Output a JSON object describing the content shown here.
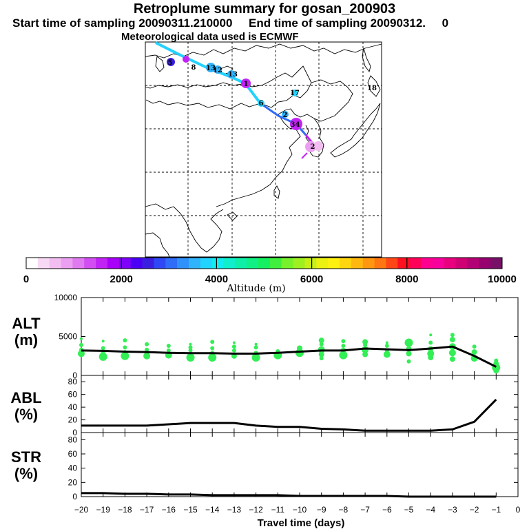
{
  "header": {
    "title": "Retroplume summary for gosan_200903",
    "line2": "Start time of sampling 20090311.210000     End time of sampling 20090312.     0",
    "line3": "Meteorological data used is ECMWF"
  },
  "colorbar": {
    "label": "Altitude (m)",
    "ticks": [
      "0",
      "2000",
      "4000",
      "6000",
      "8000",
      "10000"
    ],
    "colors": [
      "#ffffff",
      "#f7d9f5",
      "#f2bdf0",
      "#eb9ff0",
      "#e07af0",
      "#d24ef2",
      "#c223f5",
      "#a800f8",
      "#7f00fa",
      "#4b00f5",
      "#3a1fe0",
      "#2f47f5",
      "#2f6cf7",
      "#2f91fa",
      "#2fb4fc",
      "#22d3ff",
      "#10ecf0",
      "#10eecc",
      "#10efa8",
      "#10f085",
      "#15f060",
      "#40ef3e",
      "#77f12c",
      "#9ff021",
      "#c8ef18",
      "#ebf110",
      "#fff010",
      "#ffd510",
      "#ffb810",
      "#ff9810",
      "#ff7612",
      "#ff4616",
      "#ff1020",
      "#ff0058",
      "#ff0090",
      "#f8009c",
      "#e8007f",
      "#cf0073",
      "#b40075",
      "#96006f",
      "#781068"
    ]
  },
  "map": {
    "point_labels": [
      "5",
      "8",
      "13",
      "12",
      "13",
      "6",
      "17",
      "1",
      "2",
      "18",
      "3",
      "2",
      "4"
    ]
  },
  "axes": {
    "x_label": "Travel time (days)",
    "x_ticks": [
      "−20",
      "−19",
      "−18",
      "−17",
      "−16",
      "−15",
      "−14",
      "−13",
      "−12",
      "−11",
      "−10",
      "−9",
      "−8",
      "−7",
      "−6",
      "−5",
      "−4",
      "−3",
      "−2",
      "−1",
      "0"
    ]
  },
  "chart_data": [
    {
      "type": "line",
      "panel": "ALT",
      "ylabel": "ALT\n(m)",
      "ylim": [
        0,
        10000
      ],
      "yticks": [
        "10000",
        "5000",
        "0"
      ],
      "x": [
        -20,
        -19,
        -18,
        -17,
        -16,
        -15,
        -14,
        -13,
        -12,
        -11,
        -10,
        -9,
        -8,
        -7,
        -6,
        -5,
        -4,
        -3,
        -2,
        -1
      ],
      "y": [
        3200,
        3150,
        3050,
        3000,
        2900,
        2850,
        2850,
        2800,
        2800,
        2900,
        3050,
        3200,
        3200,
        3450,
        3350,
        3250,
        3450,
        3700,
        2500,
        1100
      ],
      "scatter_note": "green markers around the mean altitude curve at each day"
    },
    {
      "type": "line",
      "panel": "ABL",
      "ylabel": "ABL\n(%)",
      "ylim": [
        0,
        90
      ],
      "yticks": [
        "80",
        "60",
        "40",
        "20",
        "0"
      ],
      "x": [
        -20,
        -19,
        -18,
        -17,
        -16,
        -15,
        -14,
        -13,
        -12,
        -11,
        -10,
        -9,
        -8,
        -7,
        -6,
        -5,
        -4,
        -3,
        -2,
        -1
      ],
      "y": [
        11,
        11,
        11,
        11,
        13,
        15,
        15,
        15,
        11,
        9,
        9,
        6,
        5,
        3,
        3,
        3,
        3,
        5,
        17,
        52
      ]
    },
    {
      "type": "line",
      "panel": "STR",
      "ylabel": "STR\n(%)",
      "ylim": [
        0,
        90
      ],
      "yticks": [
        "80",
        "60",
        "40",
        "20",
        "0"
      ],
      "x": [
        -20,
        -19,
        -18,
        -17,
        -16,
        -15,
        -14,
        -13,
        -12,
        -11,
        -10,
        -9,
        -8,
        -7,
        -6,
        -5,
        -4,
        -3,
        -2,
        -1
      ],
      "y": [
        5,
        5,
        4,
        4,
        3,
        3,
        2,
        2,
        2,
        2,
        1,
        1,
        1,
        1,
        1,
        0,
        0,
        0,
        0,
        0
      ]
    }
  ],
  "scatter": [
    {
      "x": -20,
      "ys": [
        2800,
        3300,
        3900,
        4700
      ],
      "r": [
        5,
        3,
        3,
        2
      ]
    },
    {
      "x": -19,
      "ys": [
        2400,
        2900,
        3500,
        4400
      ],
      "r": [
        6,
        3,
        3,
        2
      ]
    },
    {
      "x": -18,
      "ys": [
        2500,
        3000,
        3600,
        4500
      ],
      "r": [
        6,
        3,
        3,
        3
      ]
    },
    {
      "x": -17,
      "ys": [
        2500,
        2900,
        3300,
        4000
      ],
      "r": [
        5,
        3,
        3,
        3
      ]
    },
    {
      "x": -16,
      "ys": [
        2600,
        3200,
        3800
      ],
      "r": [
        5,
        3,
        3
      ]
    },
    {
      "x": -15,
      "ys": [
        2300,
        2700,
        3200,
        3600,
        4000
      ],
      "r": [
        6,
        4,
        3,
        3,
        2
      ]
    },
    {
      "x": -14,
      "ys": [
        2300,
        2900,
        3500,
        4300
      ],
      "r": [
        6,
        3,
        3,
        3
      ]
    },
    {
      "x": -13,
      "ys": [
        2500,
        3200,
        3700,
        4200
      ],
      "r": [
        4,
        3,
        3,
        2
      ]
    },
    {
      "x": -12,
      "ys": [
        2300,
        2900,
        3600,
        4000
      ],
      "r": [
        6,
        3,
        3,
        2
      ]
    },
    {
      "x": -11,
      "ys": [
        2600,
        3100
      ],
      "r": [
        6,
        3
      ]
    },
    {
      "x": -10,
      "ys": [
        2900,
        3500
      ],
      "r": [
        6,
        4
      ]
    },
    {
      "x": -9,
      "ys": [
        2200,
        2700,
        3300,
        4000,
        4500
      ],
      "r": [
        3,
        4,
        5,
        3,
        4
      ]
    },
    {
      "x": -8,
      "ys": [
        2600,
        3200,
        3800,
        4400
      ],
      "r": [
        6,
        4,
        3,
        3
      ]
    },
    {
      "x": -7,
      "ys": [
        2700,
        3300,
        3900,
        4300
      ],
      "r": [
        4,
        5,
        3,
        4
      ]
    },
    {
      "x": -6,
      "ys": [
        2700,
        3200,
        3800,
        4200
      ],
      "r": [
        5,
        3,
        3,
        2
      ]
    },
    {
      "x": -5,
      "ys": [
        1800,
        2800,
        3400,
        4200
      ],
      "r": [
        3,
        4,
        4,
        6
      ]
    },
    {
      "x": -4,
      "ys": [
        2300,
        2800,
        3400,
        4200,
        5200
      ],
      "r": [
        4,
        5,
        4,
        3,
        2
      ]
    },
    {
      "x": -3,
      "ys": [
        2100,
        2900,
        3700,
        4600,
        5200
      ],
      "r": [
        4,
        5,
        5,
        4,
        3
      ]
    },
    {
      "x": -2,
      "ys": [
        2200,
        3000,
        3700
      ],
      "r": [
        5,
        4,
        3
      ]
    },
    {
      "x": -1,
      "ys": [
        600,
        1000,
        1500,
        1900
      ],
      "r": [
        4,
        6,
        4,
        3
      ]
    }
  ]
}
